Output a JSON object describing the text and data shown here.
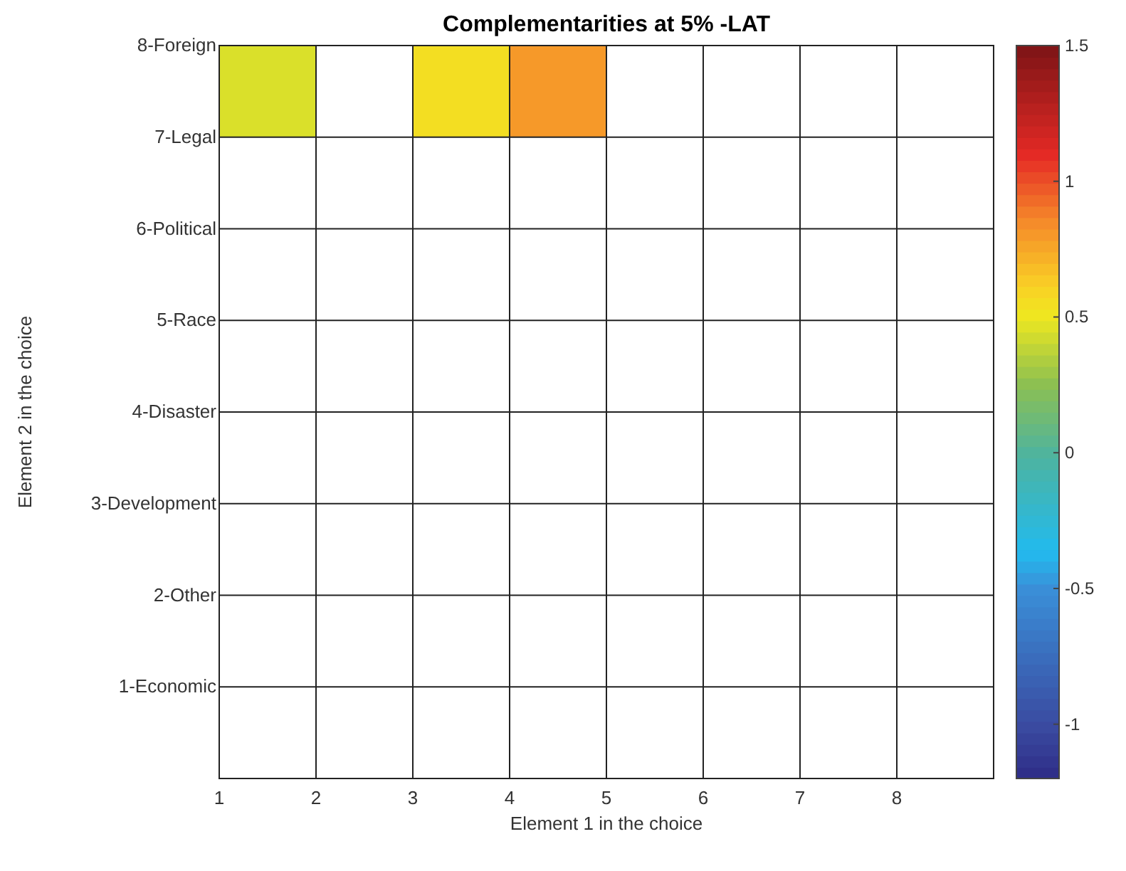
{
  "chart_data": {
    "type": "heatmap",
    "title": "Complementarities at 5% -LAT",
    "xlabel": "Element 1 in the choice",
    "ylabel": "Element 2 in the choice",
    "xlim": [
      1,
      9
    ],
    "xticks": [
      1,
      2,
      3,
      4,
      5,
      6,
      7,
      8
    ],
    "y_categories": [
      "8-Foreign",
      "7-Legal",
      "6-Political",
      "5-Race",
      "4-Disaster",
      "3-Development",
      "2-Other",
      "1-Economic"
    ],
    "cells": [
      [
        0.45,
        null,
        0.55,
        0.8,
        null,
        null,
        null,
        null
      ],
      [
        null,
        null,
        null,
        null,
        null,
        null,
        null,
        null
      ],
      [
        null,
        null,
        null,
        null,
        null,
        null,
        null,
        null
      ],
      [
        null,
        null,
        null,
        null,
        null,
        null,
        null,
        null
      ],
      [
        null,
        null,
        null,
        null,
        null,
        null,
        null,
        null
      ],
      [
        null,
        null,
        null,
        null,
        null,
        null,
        null,
        null
      ],
      [
        null,
        null,
        null,
        null,
        null,
        null,
        null,
        null
      ],
      [
        null,
        null,
        null,
        null,
        null,
        null,
        null,
        null
      ]
    ],
    "clim": [
      -1.2,
      1.5
    ],
    "cticks": [
      -1,
      -0.5,
      0,
      0.5,
      1,
      1.5
    ],
    "grid": true
  }
}
